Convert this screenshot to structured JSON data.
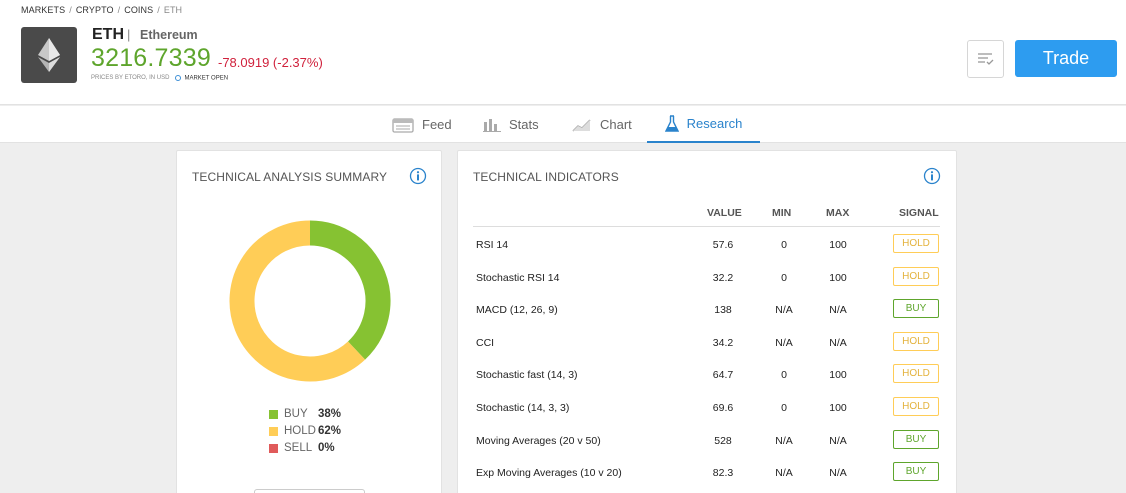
{
  "breadcrumb": [
    "MARKETS",
    "CRYPTO",
    "COINS",
    "ETH"
  ],
  "instrument": {
    "symbol": "ETH",
    "pipe": "|",
    "name": "Ethereum",
    "price": "3216.7339",
    "change": "-78.0919 (-2.37%)",
    "prices_by": "PRICES BY ETORO, IN USD",
    "market_status": "MARKET OPEN",
    "logo_icon": "ethereum-diamond-icon"
  },
  "actions": {
    "watchlist_icon": "watchlist-icon",
    "trade_label": "Trade"
  },
  "tabs": [
    {
      "label": "Feed",
      "icon": "feed-icon",
      "active": false
    },
    {
      "label": "Stats",
      "icon": "stats-icon",
      "active": false
    },
    {
      "label": "Chart",
      "icon": "chart-icon",
      "active": false
    },
    {
      "label": "Research",
      "icon": "flask-icon",
      "active": true
    }
  ],
  "summary": {
    "title": "TECHNICAL ANALYSIS SUMMARY",
    "legend": [
      {
        "label": "BUY",
        "value": "38%",
        "fraction": 0.38,
        "color": "#86c232"
      },
      {
        "label": "HOLD",
        "value": "62%",
        "fraction": 0.62,
        "color": "#ffcd57"
      },
      {
        "label": "SELL",
        "value": "0%",
        "fraction": 0.0,
        "color": "#e05a5a"
      }
    ]
  },
  "indicators": {
    "title": "TECHNICAL INDICATORS",
    "columns": [
      "VALUE",
      "MIN",
      "MAX",
      "SIGNAL"
    ],
    "rows": [
      {
        "name": "RSI 14",
        "value": "57.6",
        "min": "0",
        "max": "100",
        "signal": "HOLD"
      },
      {
        "name": "Stochastic RSI 14",
        "value": "32.2",
        "min": "0",
        "max": "100",
        "signal": "HOLD"
      },
      {
        "name": "MACD (12, 26, 9)",
        "value": "138",
        "min": "N/A",
        "max": "N/A",
        "signal": "BUY"
      },
      {
        "name": "CCI",
        "value": "34.2",
        "min": "N/A",
        "max": "N/A",
        "signal": "HOLD"
      },
      {
        "name": "Stochastic fast (14, 3)",
        "value": "64.7",
        "min": "0",
        "max": "100",
        "signal": "HOLD"
      },
      {
        "name": "Stochastic (14, 3, 3)",
        "value": "69.6",
        "min": "0",
        "max": "100",
        "signal": "HOLD"
      },
      {
        "name": "Moving Averages (20 v 50)",
        "value": "528",
        "min": "N/A",
        "max": "N/A",
        "signal": "BUY"
      },
      {
        "name": "Exp Moving Averages (10 v 20)",
        "value": "82.3",
        "min": "N/A",
        "max": "N/A",
        "signal": "BUY"
      }
    ]
  },
  "colors": {
    "price_up": "#5ea52c",
    "change_down": "#d0213c",
    "accent": "#2a83cc",
    "trade_button": "#2d9cf0",
    "hold_border": "#ffcd57",
    "hold_text": "#e3b23c",
    "buy": "#5ea52c"
  }
}
